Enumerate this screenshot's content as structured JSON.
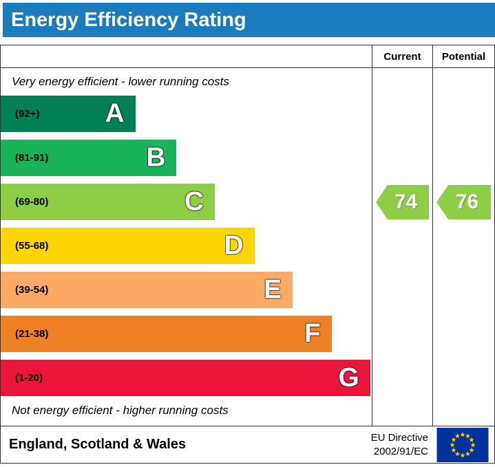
{
  "title": "Energy Efficiency Rating",
  "colors": {
    "banner_bg": "#1b7cbd",
    "banner_text": "#ffffff",
    "border": "#333333",
    "flag_bg": "#003399",
    "flag_star": "#ffcc00"
  },
  "columns": {
    "current": "Current",
    "potential": "Potential"
  },
  "notes": {
    "top": "Very energy efficient - lower running costs",
    "bottom": "Not energy efficient - higher running costs"
  },
  "bands": [
    {
      "letter": "A",
      "range": "(92+)",
      "color": "#008054",
      "width_pct": 36.3
    },
    {
      "letter": "B",
      "range": "(81-91)",
      "color": "#19b459",
      "width_pct": 47.4
    },
    {
      "letter": "C",
      "range": "(69-80)",
      "color": "#8dce46",
      "width_pct": 57.7
    },
    {
      "letter": "D",
      "range": "(55-68)",
      "color": "#ffd500",
      "width_pct": 68.4
    },
    {
      "letter": "E",
      "range": "(39-54)",
      "color": "#fcaa65",
      "width_pct": 78.7
    },
    {
      "letter": "F",
      "range": "(21-38)",
      "color": "#ef8023",
      "width_pct": 89.2
    },
    {
      "letter": "G",
      "range": "(1-20)",
      "color": "#e9153b",
      "width_pct": 99.6
    }
  ],
  "current": {
    "value": "74",
    "color": "#8dce46",
    "band": "C"
  },
  "potential": {
    "value": "76",
    "color": "#8dce46",
    "band": "C"
  },
  "footer": {
    "region": "England, Scotland & Wales",
    "directive_line1": "EU Directive",
    "directive_line2": "2002/91/EC"
  },
  "chart_data": {
    "type": "bar",
    "title": "Energy Efficiency Rating",
    "categories": [
      "A",
      "B",
      "C",
      "D",
      "E",
      "F",
      "G"
    ],
    "band_ranges": [
      "92+",
      "81-91",
      "69-80",
      "55-68",
      "39-54",
      "21-38",
      "1-20"
    ],
    "band_colors": [
      "#008054",
      "#19b459",
      "#8dce46",
      "#ffd500",
      "#fcaa65",
      "#ef8023",
      "#e9153b"
    ],
    "bar_relative_widths": [
      0.36,
      0.47,
      0.58,
      0.68,
      0.79,
      0.89,
      1.0
    ],
    "markers": [
      {
        "name": "Current",
        "value": 74,
        "band": "C"
      },
      {
        "name": "Potential",
        "value": 76,
        "band": "C"
      }
    ],
    "annotations": [
      "Very energy efficient - lower running costs",
      "Not energy efficient - higher running costs"
    ],
    "footnote": "England, Scotland & Wales",
    "directive": "EU Directive 2002/91/EC"
  }
}
